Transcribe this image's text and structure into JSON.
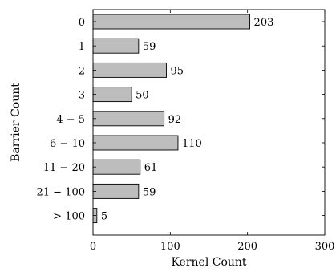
{
  "chart_data": {
    "type": "bar",
    "orientation": "horizontal",
    "categories": [
      "0",
      "1",
      "2",
      "3",
      "4 − 5",
      "6 − 10",
      "11 − 20",
      "21 − 100",
      "> 100"
    ],
    "values": [
      203,
      59,
      95,
      50,
      92,
      110,
      61,
      59,
      5
    ],
    "data_labels": [
      "203",
      "59",
      "95",
      "50",
      "92",
      "110",
      "61",
      "59",
      "5"
    ],
    "xlabel": "Kernel Count",
    "ylabel": "Barrier Count",
    "xlim": [
      0,
      300
    ],
    "xticks": [
      "0",
      "100",
      "200",
      "300"
    ],
    "grid": false,
    "colors": {
      "bar_fill": "#bdbdbd",
      "bar_stroke": "#000000"
    }
  }
}
